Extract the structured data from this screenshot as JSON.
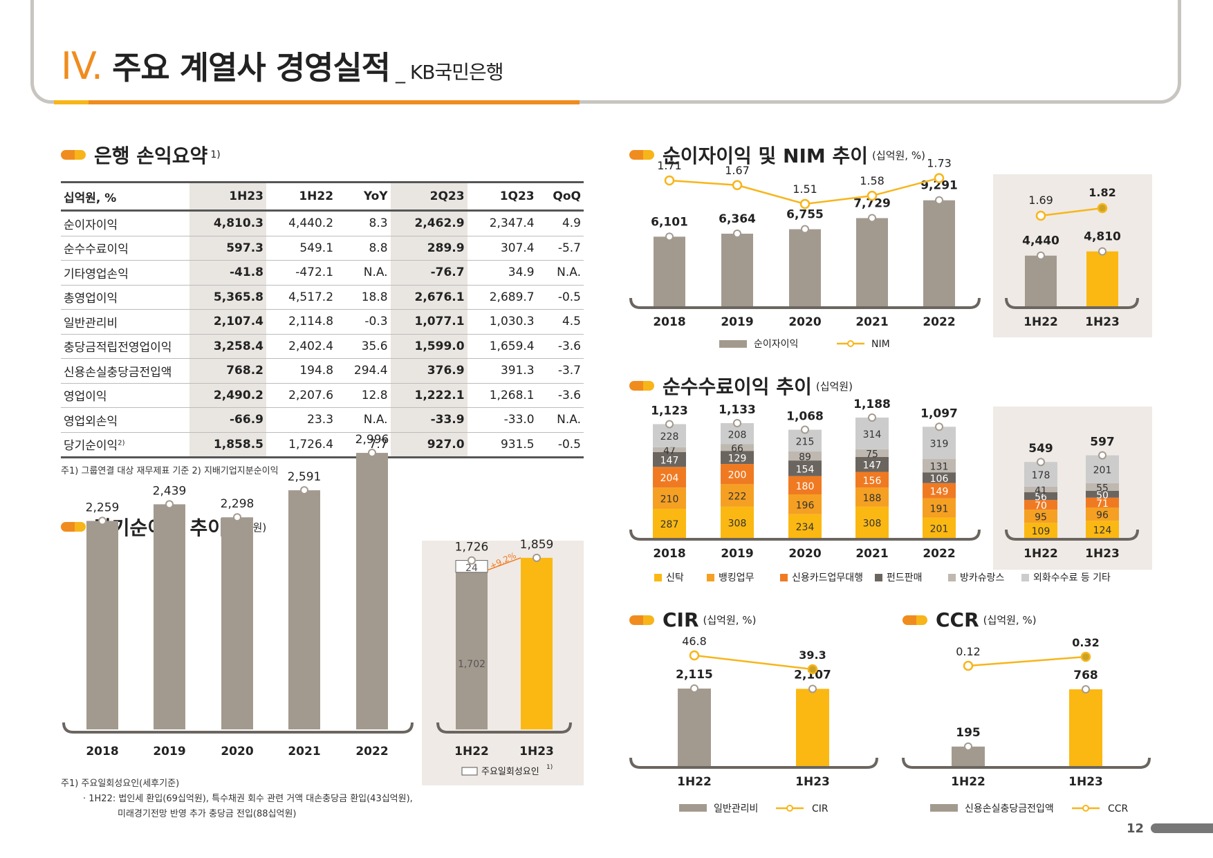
{
  "header": {
    "num": "IV.",
    "title": "주요 계열사 경영실적",
    "sub": "_ KB국민은행"
  },
  "page_number": "12",
  "colors": {
    "gray": "#a39a8f",
    "yellow": "#fbb812",
    "orange_dark": "#f07a22",
    "orange": "#f5a022",
    "dark": "#6b6560",
    "light_gray": "#bfb8b0",
    "silver": "#cccccc",
    "nim_line": "#f7b51a"
  },
  "pl_section": {
    "title": "은행 손익요약",
    "sup": "1)"
  },
  "pl_table": {
    "headers": [
      "십억원, %",
      "1H23",
      "1H22",
      "YoY",
      "2Q23",
      "1Q23",
      "QoQ"
    ],
    "rows": [
      [
        "순이자이익",
        "4,810.3",
        "4,440.2",
        "8.3",
        "2,462.9",
        "2,347.4",
        "4.9"
      ],
      [
        "순수수료이익",
        "597.3",
        "549.1",
        "8.8",
        "289.9",
        "307.4",
        "-5.7"
      ],
      [
        "기타영업손익",
        "-41.8",
        "-472.1",
        "N.A.",
        "-76.7",
        "34.9",
        "N.A."
      ],
      [
        "총영업이익",
        "5,365.8",
        "4,517.2",
        "18.8",
        "2,676.1",
        "2,689.7",
        "-0.5"
      ],
      [
        "일반관리비",
        "2,107.4",
        "2,114.8",
        "-0.3",
        "1,077.1",
        "1,030.3",
        "4.5"
      ],
      [
        "충당금적립전영업이익",
        "3,258.4",
        "2,402.4",
        "35.6",
        "1,599.0",
        "1,659.4",
        "-3.6"
      ],
      [
        "신용손실충당금전입액",
        "768.2",
        "194.8",
        "294.4",
        "376.9",
        "391.3",
        "-3.7"
      ],
      [
        "영업이익",
        "2,490.2",
        "2,207.6",
        "12.8",
        "1,222.1",
        "1,268.1",
        "-3.6"
      ],
      [
        "영업외손익",
        "-66.9",
        "23.3",
        "N.A.",
        "-33.9",
        "-33.0",
        "N.A."
      ],
      [
        "당기순이익",
        "1,858.5",
        "1,726.4",
        "7.7",
        "927.0",
        "931.5",
        "-0.5"
      ]
    ],
    "last_row_sup": "2)",
    "note": "주1) 그룹연결 대상 재무제표 기준     2) 지배기업지분순이익"
  },
  "ni_section": {
    "title": "당기순이익 추이",
    "unit": "(십억원)"
  },
  "nim_section": {
    "title": "순이자이익 및 NIM 추이",
    "unit": "(십억원, %)"
  },
  "fee_section": {
    "title": "순수수료이익 추이",
    "unit": "(십억원)"
  },
  "cir_section": {
    "title": "CIR",
    "unit": "(십억원, %)"
  },
  "ccr_section": {
    "title": "CCR",
    "unit": "(십억원, %)"
  },
  "ni_notes": {
    "line1": "주1) 주요일회성요인(세후기준)",
    "line2": "· 1H22: 법인세 환입(69십억원), 특수채권 회수 관련 거액 대손충당금 환입(43십억원),",
    "line3": "미래경기전망 반영 추가 충당금 전입(88십억원)"
  },
  "chart_data": [
    {
      "id": "net-income-annual",
      "type": "bar",
      "categories": [
        "2018",
        "2019",
        "2020",
        "2021",
        "2022"
      ],
      "series": [
        {
          "values": [
            2259,
            2439,
            2298,
            2591,
            2996
          ]
        }
      ],
      "labels": [
        "2,259",
        "2,439",
        "2,298",
        "2,591",
        "2,996"
      ]
    },
    {
      "id": "net-income-half",
      "type": "bar",
      "categories": [
        "1H22",
        "1H23"
      ],
      "series": [
        {
          "name": "주요일회성요인",
          "values": [
            24,
            0
          ]
        },
        {
          "values": [
            1702,
            1859
          ]
        }
      ],
      "totals": [
        1726,
        1859
      ],
      "labels": [
        "1,726",
        "1,859"
      ],
      "inner_labels": [
        "1,702",
        "24"
      ],
      "growth_label": "+9.2%",
      "legend": [
        "주요일회성요인"
      ],
      "legend_sup": "1)"
    },
    {
      "id": "nii-annual",
      "type": "bar+line",
      "categories": [
        "2018",
        "2019",
        "2020",
        "2021",
        "2022"
      ],
      "series": [
        {
          "name": "순이자이익",
          "values": [
            6101,
            6364,
            6755,
            7729,
            9291
          ]
        },
        {
          "name": "NIM",
          "values": [
            1.71,
            1.67,
            1.51,
            1.58,
            1.73
          ]
        }
      ],
      "bar_labels": [
        "6,101",
        "6,364",
        "6,755",
        "7,729",
        "9,291"
      ],
      "line_labels": [
        "1.71",
        "1.67",
        "1.51",
        "1.58",
        "1.73"
      ],
      "legend": [
        "순이자이익",
        "NIM"
      ]
    },
    {
      "id": "nii-half",
      "type": "bar+line",
      "categories": [
        "1H22",
        "1H23"
      ],
      "series": [
        {
          "name": "순이자이익",
          "values": [
            4440,
            4810
          ]
        },
        {
          "name": "NIM",
          "values": [
            1.69,
            1.82
          ]
        }
      ],
      "bar_labels": [
        "4,440",
        "4,810"
      ],
      "line_labels": [
        "1.69",
        "1.82"
      ]
    },
    {
      "id": "fee-annual",
      "type": "stacked-bar",
      "categories": [
        "2018",
        "2019",
        "2020",
        "2021",
        "2022"
      ],
      "series": [
        {
          "name": "신탁",
          "values": [
            287,
            308,
            234,
            308,
            201
          ]
        },
        {
          "name": "뱅킹업무",
          "values": [
            210,
            222,
            196,
            188,
            191
          ]
        },
        {
          "name": "신용카드업무대행",
          "values": [
            204,
            200,
            180,
            156,
            149
          ]
        },
        {
          "name": "펀드판매",
          "values": [
            147,
            129,
            154,
            147,
            106
          ]
        },
        {
          "name": "방카슈랑스",
          "values": [
            47,
            66,
            89,
            75,
            131
          ]
        },
        {
          "name": "외화수수료 등 기타",
          "values": [
            228,
            208,
            215,
            314,
            319
          ]
        }
      ],
      "totals": [
        "1,123",
        "1,133",
        "1,068",
        "1,188",
        "1,097"
      ]
    },
    {
      "id": "fee-half",
      "type": "stacked-bar",
      "categories": [
        "1H22",
        "1H23"
      ],
      "series": [
        {
          "name": "신탁",
          "values": [
            109,
            124
          ]
        },
        {
          "name": "뱅킹업무",
          "values": [
            95,
            96
          ]
        },
        {
          "name": "신용카드업무대행",
          "values": [
            70,
            71
          ]
        },
        {
          "name": "펀드판매",
          "values": [
            56,
            50
          ]
        },
        {
          "name": "방카슈랑스",
          "values": [
            41,
            55
          ]
        },
        {
          "name": "외화수수료 등 기타",
          "values": [
            178,
            201
          ]
        }
      ],
      "totals": [
        "549",
        "597"
      ]
    },
    {
      "id": "cir",
      "type": "bar+line",
      "categories": [
        "1H22",
        "1H23"
      ],
      "series": [
        {
          "name": "일반관리비",
          "values": [
            2115,
            2107
          ]
        },
        {
          "name": "CIR",
          "values": [
            46.8,
            39.3
          ]
        }
      ],
      "bar_labels": [
        "2,115",
        "2,107"
      ],
      "line_labels": [
        "46.8",
        "39.3"
      ],
      "legend": [
        "일반관리비",
        "CIR"
      ]
    },
    {
      "id": "ccr",
      "type": "bar+line",
      "categories": [
        "1H22",
        "1H23"
      ],
      "series": [
        {
          "name": "신용손실충당금전입액",
          "values": [
            195,
            768
          ]
        },
        {
          "name": "CCR",
          "values": [
            0.12,
            0.32
          ]
        }
      ],
      "bar_labels": [
        "195",
        "768"
      ],
      "line_labels": [
        "0.12",
        "0.32"
      ],
      "legend": [
        "신용손실충당금전입액",
        "CCR"
      ]
    }
  ]
}
